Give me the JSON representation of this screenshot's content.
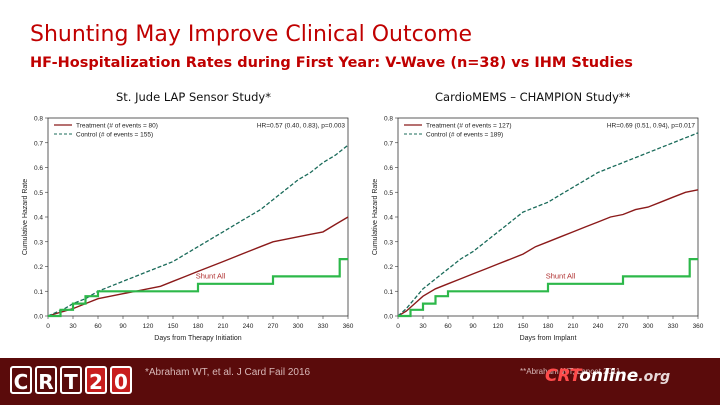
{
  "title": "Shunting May Improve Clinical Outcome",
  "subtitle": "HF-Hospitalization Rates during First Year:  V-Wave (n=38) vs IHM Studies",
  "footer": {
    "logo_chars": [
      "C",
      "R",
      "T",
      "2",
      "0"
    ],
    "footnote_left": "*Abraham WT, et al. J Card Fail 2016",
    "footnote_right": "**Abraham WT, Lancet 2011",
    "brand_prefix": "CRT",
    "brand_suffix": "online",
    "brand_tld": ".org"
  },
  "colors": {
    "title": "#c00000",
    "treatment": "#8b1a1a",
    "control": "#1a6b5a",
    "shunt": "#2db84a",
    "footer_bg": "#5a0b0b"
  },
  "chart_data": [
    {
      "type": "line",
      "title": "St. Jude LAP Sensor Study*",
      "xlabel": "Days from Therapy Initiation",
      "ylabel": "Cumulative Hazard Rate",
      "xlim": [
        0,
        360
      ],
      "ylim": [
        0,
        0.8
      ],
      "xticks": [
        0,
        30,
        60,
        90,
        120,
        150,
        180,
        210,
        240,
        270,
        300,
        330,
        360
      ],
      "yticks": [
        0.0,
        0.1,
        0.2,
        0.3,
        0.4,
        0.5,
        0.6,
        0.7,
        0.8
      ],
      "legend_position": "top-left",
      "annotation": "HR=0.57 (0.40, 0.83), p=0.003",
      "shunt_label": "Shunt All",
      "series": [
        {
          "name": "Treatment (# of events = 80)",
          "style": "solid",
          "x": [
            0,
            10,
            20,
            30,
            45,
            60,
            75,
            90,
            105,
            120,
            135,
            150,
            165,
            180,
            195,
            210,
            225,
            240,
            255,
            270,
            285,
            300,
            315,
            330,
            345,
            360
          ],
          "y": [
            0,
            0.01,
            0.02,
            0.03,
            0.05,
            0.07,
            0.08,
            0.09,
            0.1,
            0.11,
            0.12,
            0.14,
            0.16,
            0.18,
            0.2,
            0.22,
            0.24,
            0.26,
            0.28,
            0.3,
            0.31,
            0.32,
            0.33,
            0.34,
            0.37,
            0.4
          ]
        },
        {
          "name": "Control (# of events = 155)",
          "style": "dashed",
          "x": [
            0,
            10,
            20,
            30,
            45,
            60,
            75,
            90,
            105,
            120,
            135,
            150,
            165,
            180,
            195,
            210,
            225,
            240,
            255,
            270,
            285,
            300,
            315,
            330,
            345,
            360
          ],
          "y": [
            0,
            0.015,
            0.03,
            0.05,
            0.07,
            0.1,
            0.12,
            0.14,
            0.16,
            0.18,
            0.2,
            0.22,
            0.25,
            0.28,
            0.31,
            0.34,
            0.37,
            0.4,
            0.43,
            0.47,
            0.51,
            0.55,
            0.58,
            0.62,
            0.65,
            0.69
          ]
        },
        {
          "name": "Shunt All",
          "style": "step",
          "x": [
            0,
            15,
            15,
            30,
            30,
            45,
            45,
            60,
            60,
            90,
            90,
            180,
            180,
            270,
            270,
            350,
            350,
            360
          ],
          "y": [
            0,
            0,
            0.025,
            0.025,
            0.05,
            0.05,
            0.08,
            0.08,
            0.1,
            0.1,
            0.1,
            0.1,
            0.13,
            0.13,
            0.16,
            0.16,
            0.23,
            0.23
          ]
        }
      ]
    },
    {
      "type": "line",
      "title": "CardioMEMS – CHAMPION Study**",
      "xlabel": "Days from Implant",
      "ylabel": "Cumulative Hazard Rate",
      "xlim": [
        0,
        360
      ],
      "ylim": [
        0,
        0.8
      ],
      "xticks": [
        0,
        30,
        60,
        90,
        120,
        150,
        180,
        210,
        240,
        270,
        300,
        330,
        360
      ],
      "yticks": [
        0.0,
        0.1,
        0.2,
        0.3,
        0.4,
        0.5,
        0.6,
        0.7,
        0.8
      ],
      "legend_position": "top-left",
      "annotation": "HR=0.69 (0.51, 0.94), p=0.017",
      "shunt_label": "Shunt All",
      "series": [
        {
          "name": "Treatment (# of events = 127)",
          "style": "solid",
          "x": [
            0,
            10,
            20,
            30,
            45,
            60,
            75,
            90,
            105,
            120,
            135,
            150,
            165,
            180,
            195,
            210,
            225,
            240,
            255,
            270,
            285,
            300,
            315,
            330,
            345,
            360
          ],
          "y": [
            0,
            0.02,
            0.05,
            0.08,
            0.11,
            0.13,
            0.15,
            0.17,
            0.19,
            0.21,
            0.23,
            0.25,
            0.28,
            0.3,
            0.32,
            0.34,
            0.36,
            0.38,
            0.4,
            0.41,
            0.43,
            0.44,
            0.46,
            0.48,
            0.5,
            0.51
          ]
        },
        {
          "name": "Control (# of events = 189)",
          "style": "dashed",
          "x": [
            0,
            10,
            20,
            30,
            45,
            60,
            75,
            90,
            105,
            120,
            135,
            150,
            165,
            180,
            195,
            210,
            225,
            240,
            255,
            270,
            285,
            300,
            315,
            330,
            345,
            360
          ],
          "y": [
            0,
            0.03,
            0.07,
            0.11,
            0.15,
            0.19,
            0.23,
            0.26,
            0.3,
            0.34,
            0.38,
            0.42,
            0.44,
            0.46,
            0.49,
            0.52,
            0.55,
            0.58,
            0.6,
            0.62,
            0.64,
            0.66,
            0.68,
            0.7,
            0.72,
            0.74
          ]
        },
        {
          "name": "Shunt All",
          "style": "step",
          "x": [
            0,
            15,
            15,
            30,
            30,
            45,
            45,
            60,
            60,
            90,
            90,
            180,
            180,
            270,
            270,
            350,
            350,
            360
          ],
          "y": [
            0,
            0,
            0.025,
            0.025,
            0.05,
            0.05,
            0.08,
            0.08,
            0.1,
            0.1,
            0.1,
            0.1,
            0.13,
            0.13,
            0.16,
            0.16,
            0.23,
            0.23
          ]
        }
      ]
    }
  ]
}
